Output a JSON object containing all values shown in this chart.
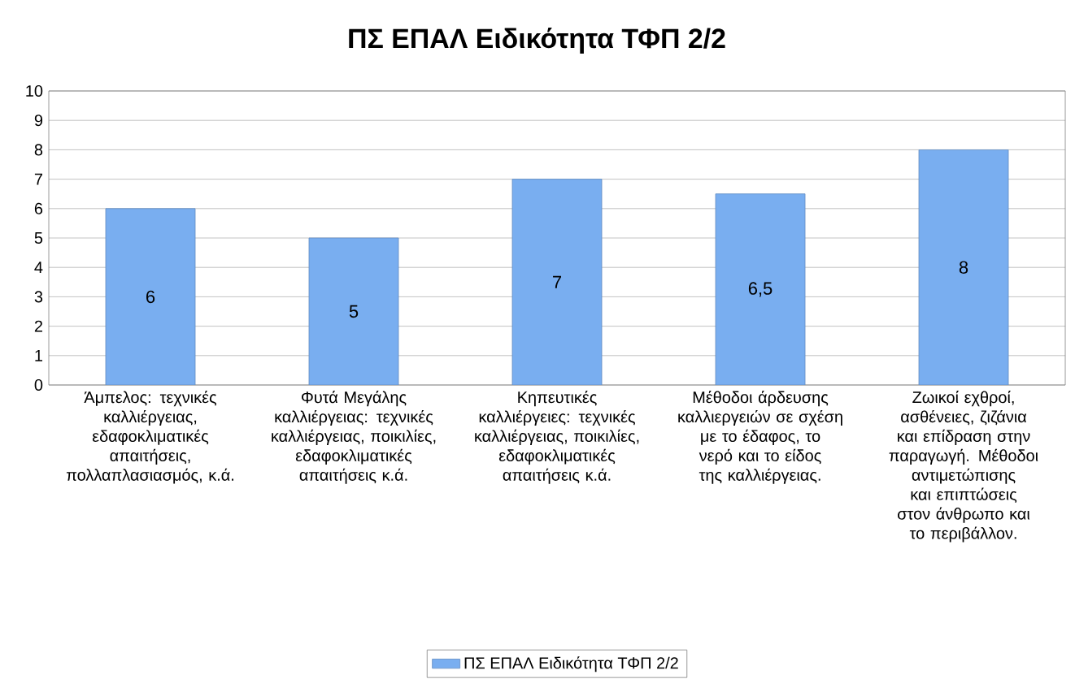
{
  "chart_data": {
    "type": "bar",
    "title": "ΠΣ ΕΠΑΛ Ειδικότητα ΤΦΠ 2/2",
    "categories": [
      "Άμπελος: τεχνικές καλλιέργειας, εδαφοκλιματικές απαιτήσεις, πολλαπλασιασμός, κ.ά.",
      "Φυτά Μεγάλης καλλιέργειας: τεχνικές καλλιέργειας, ποικιλίες, εδαφοκλιματικές απαιτήσεις κ.ά.",
      "Κηπευτικές καλλιέργειες: τεχνικές καλλιέργειας, ποικιλίες, εδαφοκλιματικές απαιτήσεις κ.ά.",
      "Μέθοδοι άρδευσης καλλιεργειών σε σχέση με το έδαφος, το νερό και το είδος της καλλιέργειας.",
      "Ζωικοί εχθροί, ασθένειες, ζιζάνια και επίδραση στην παραγωγή. Μέθοδοι αντιμετώπισης και επιπτώσεις στον άνθρωπο και το περιβάλλον."
    ],
    "series": [
      {
        "name": "ΠΣ ΕΠΑΛ Ειδικότητα ΤΦΠ 2/2",
        "color": "#79aef0",
        "values": [
          6,
          5,
          7,
          6.5,
          8
        ],
        "value_labels": [
          "6",
          "5",
          "7",
          "6,5",
          "8"
        ]
      }
    ],
    "ylim": [
      0,
      10
    ],
    "yticks": [
      0,
      1,
      2,
      3,
      4,
      5,
      6,
      7,
      8,
      9,
      10
    ],
    "grid": "y",
    "legend": "bottom"
  }
}
